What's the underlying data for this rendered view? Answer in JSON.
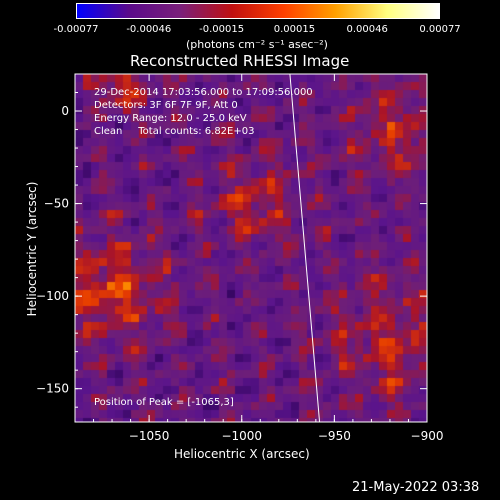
{
  "colorbar": {
    "stops": [
      "#0000ff",
      "#5a0a8a",
      "#7a1f7a",
      "#c01010",
      "#ff4000",
      "#ffa000",
      "#ffff80",
      "#ffffff"
    ],
    "tick_labels": [
      "-0.00077",
      "-0.00046",
      "-0.00015",
      "0.00015",
      "0.00046",
      "0.00077"
    ],
    "unit_label": "(photons cm⁻² s⁻¹ asec⁻²)"
  },
  "title": "Reconstructed RHESSI Image",
  "info": {
    "time": "29-Dec-2014 17:03:56.000 to 17:09:56.000",
    "detectors": "Detectors: 3F 6F 7F 9F, Att 0",
    "energy": "Energy Range: 12.0 - 25.0 keV",
    "clean": "Clean     Total counts: 6.82E+03",
    "peak": "Position of Peak = [-1065,3]"
  },
  "axes": {
    "xlabel": "Heliocentric X (arcsec)",
    "ylabel": "Heliocentric Y (arcsec)",
    "xlim": [
      -1090,
      -900
    ],
    "ylim": [
      -168,
      20
    ],
    "xticks": [
      -1050,
      -1000,
      -950,
      -900
    ],
    "yticks": [
      0,
      -50,
      -100,
      -150
    ],
    "xtick_labels": [
      "−1050",
      "−1000",
      "−950",
      "−900"
    ],
    "ytick_labels": [
      "0",
      "−50",
      "−100",
      "−150"
    ]
  },
  "limb_line": {
    "x1": -974,
    "y1": 20,
    "x2": -958,
    "y2": -168
  },
  "timestamp": "21-May-2022 03:38"
}
